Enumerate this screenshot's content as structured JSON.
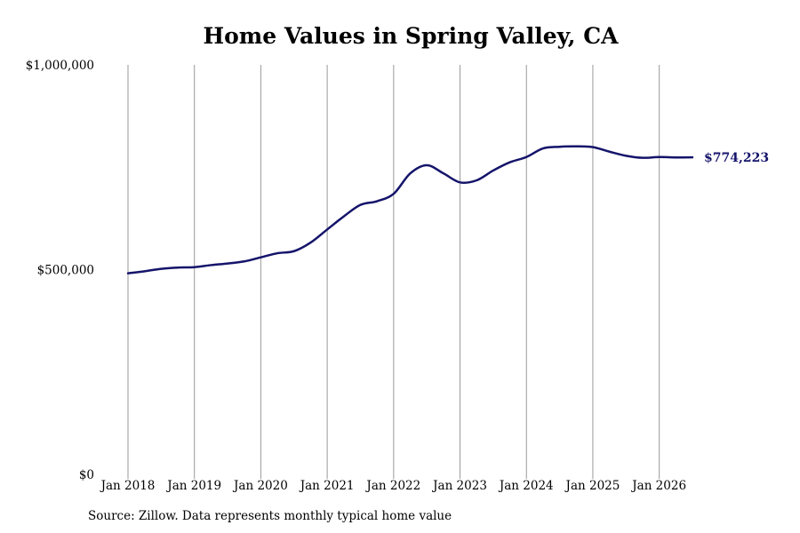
{
  "chart_data": {
    "type": "line",
    "title": "Home Values in Spring Valley, CA",
    "xlabel": "",
    "ylabel": "",
    "ylim": [
      0,
      1000000
    ],
    "y_ticks": [
      {
        "value": 0,
        "label": "$0"
      },
      {
        "value": 500000,
        "label": "$500,000"
      },
      {
        "value": 1000000,
        "label": "$1,000,000"
      }
    ],
    "x_ticks": [
      "Jan 2018",
      "Jan 2019",
      "Jan 2020",
      "Jan 2021",
      "Jan 2022",
      "Jan 2023",
      "Jan 2024",
      "Jan 2025",
      "Jan 2026"
    ],
    "xlim": [
      "2018-01",
      "2026-07"
    ],
    "grid": "vertical",
    "line_color": "#14146b",
    "grid_color": "#9a9a9a",
    "end_label": "$774,223",
    "series": [
      {
        "x": [
          "2018-01",
          "2018-04",
          "2018-07",
          "2018-10",
          "2019-01",
          "2019-04",
          "2019-07",
          "2019-10",
          "2020-01",
          "2020-04",
          "2020-07",
          "2020-10",
          "2021-01",
          "2021-04",
          "2021-07",
          "2021-10",
          "2022-01",
          "2022-04",
          "2022-07",
          "2022-10",
          "2023-01",
          "2023-04",
          "2023-07",
          "2023-10",
          "2024-01",
          "2024-04",
          "2024-07",
          "2024-10",
          "2025-01",
          "2025-04",
          "2025-07",
          "2025-10",
          "2026-01",
          "2026-04",
          "2026-07"
        ],
        "values": [
          491000,
          496000,
          502000,
          505000,
          506000,
          511000,
          515000,
          520000,
          530000,
          540000,
          545000,
          566000,
          598000,
          630000,
          658000,
          667000,
          685000,
          735000,
          755000,
          735000,
          713000,
          718000,
          742000,
          762000,
          775000,
          796000,
          800000,
          801000,
          799000,
          788000,
          778000,
          773000,
          775000,
          774000,
          774223
        ]
      }
    ]
  },
  "footer": {
    "source": "Source: Zillow. Data represents monthly typical home value"
  }
}
